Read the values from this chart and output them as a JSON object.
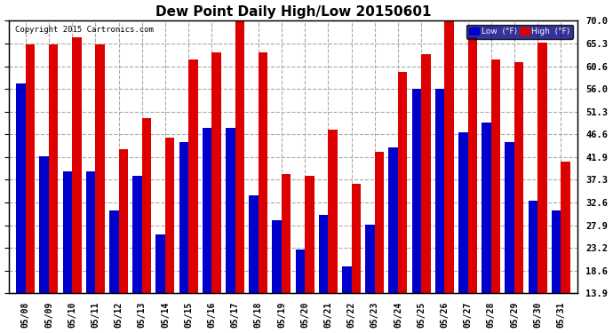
{
  "title": "Dew Point Daily High/Low 20150601",
  "copyright": "Copyright 2015 Cartronics.com",
  "yticks": [
    13.9,
    18.6,
    23.2,
    27.9,
    32.6,
    37.3,
    41.9,
    46.6,
    51.3,
    56.0,
    60.6,
    65.3,
    70.0
  ],
  "dates": [
    "05/08",
    "05/09",
    "05/10",
    "05/11",
    "05/12",
    "05/13",
    "05/14",
    "05/15",
    "05/16",
    "05/17",
    "05/18",
    "05/19",
    "05/20",
    "05/21",
    "05/22",
    "05/23",
    "05/24",
    "05/25",
    "05/26",
    "05/27",
    "05/28",
    "05/29",
    "05/30",
    "05/31"
  ],
  "low": [
    57.0,
    42.0,
    39.0,
    39.0,
    31.0,
    38.0,
    26.0,
    45.0,
    48.0,
    48.0,
    34.0,
    29.0,
    23.0,
    30.0,
    19.5,
    28.0,
    44.0,
    56.0,
    56.0,
    47.0,
    49.0,
    45.0,
    33.0,
    31.0
  ],
  "high": [
    65.0,
    65.0,
    66.5,
    65.0,
    43.5,
    50.0,
    46.0,
    62.0,
    63.5,
    70.5,
    63.5,
    38.5,
    38.0,
    47.5,
    36.5,
    43.0,
    59.5,
    63.0,
    71.5,
    66.5,
    62.0,
    61.5,
    65.5,
    41.0
  ],
  "low_color": "#0000cc",
  "high_color": "#dd0000",
  "bg_color": "#ffffff",
  "grid_color": "#aaaaaa",
  "ymin": 13.9,
  "ymax": 70.0,
  "bar_width": 0.4
}
